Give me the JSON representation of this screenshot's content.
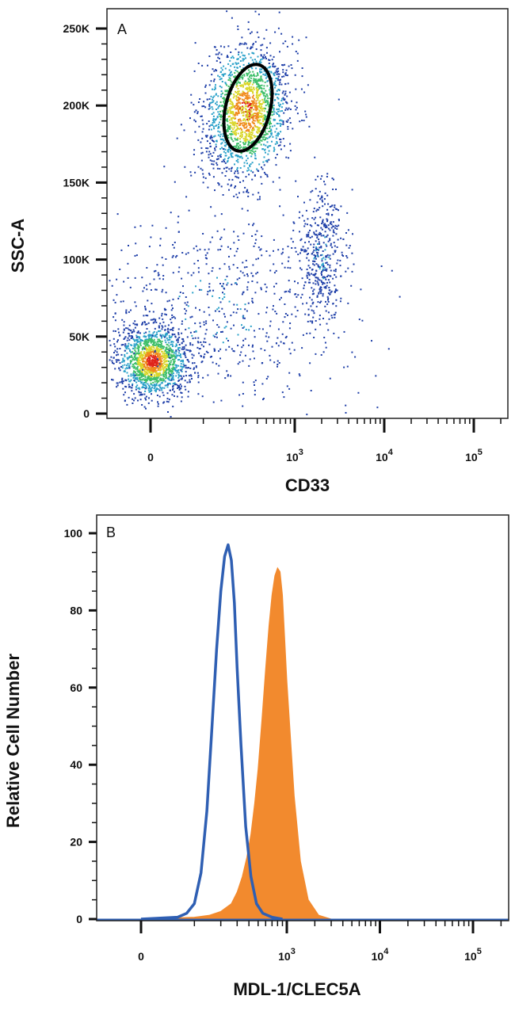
{
  "chart_data": [
    {
      "type": "scatter",
      "panel_label": "A",
      "xlabel": "CD33",
      "ylabel": "SSC-A",
      "x_scale": "biexponential",
      "x_tick_labels": [
        {
          "value": 0,
          "base": "0",
          "exp": ""
        },
        {
          "value": 1000,
          "base": "10",
          "exp": "3"
        },
        {
          "value": 10000,
          "base": "10",
          "exp": "4"
        },
        {
          "value": 100000,
          "base": "10",
          "exp": "5"
        }
      ],
      "y_tick_labels": [
        {
          "value": 0,
          "label": "0"
        },
        {
          "value": 50000,
          "label": "50K"
        },
        {
          "value": 100000,
          "label": "100K"
        },
        {
          "value": 150000,
          "label": "150K"
        },
        {
          "value": 200000,
          "label": "200K"
        },
        {
          "value": 250000,
          "label": "250K"
        }
      ],
      "ylim": [
        0,
        262144
      ],
      "colormap": [
        "#1f3fa8",
        "#2aa1c9",
        "#3fbf6a",
        "#d9d629",
        "#f08a1c",
        "#e0241b"
      ],
      "populations": [
        {
          "x_center": 0,
          "y_center": 37000,
          "density": "high"
        },
        {
          "x_center": 500,
          "y_center": 195000,
          "density": "high"
        },
        {
          "x_center": 2000,
          "y_center": 100000,
          "density": "low"
        },
        {
          "x_center": 250,
          "y_center": 70000,
          "density": "very low"
        }
      ],
      "gate": {
        "shape": "ellipse",
        "x_center": 500,
        "y_center": 201000,
        "color": "#000000"
      }
    },
    {
      "type": "area",
      "panel_label": "B",
      "xlabel": "MDL-1/CLEC5A",
      "ylabel": "Relative Cell Number",
      "x_scale": "biexponential",
      "x_tick_labels": [
        {
          "value": 0,
          "base": "0",
          "exp": ""
        },
        {
          "value": 1000,
          "base": "10",
          "exp": "3"
        },
        {
          "value": 10000,
          "base": "10",
          "exp": "4"
        },
        {
          "value": 100000,
          "base": "10",
          "exp": "5"
        }
      ],
      "y_tick_labels": [
        {
          "value": 0,
          "label": "0"
        },
        {
          "value": 20,
          "label": "20"
        },
        {
          "value": 40,
          "label": "40"
        },
        {
          "value": 60,
          "label": "60"
        },
        {
          "value": 80,
          "label": "80"
        },
        {
          "value": 100,
          "label": "100"
        }
      ],
      "ylim": [
        0,
        104
      ],
      "series": [
        {
          "style": "outline",
          "color": "#2f5fb3",
          "x": [
            0,
            60,
            80,
            100,
            120,
            140,
            160,
            180,
            200,
            220,
            240,
            260,
            280,
            300,
            330,
            370,
            420,
            480,
            560,
            700,
            900
          ],
          "y": [
            0,
            0.5,
            1.5,
            4,
            12,
            28,
            50,
            70,
            85,
            94,
            97,
            93,
            82,
            65,
            45,
            24,
            11,
            4,
            1.5,
            0.5,
            0
          ]
        },
        {
          "style": "filled",
          "color": "#f28a2e",
          "x": [
            0,
            100,
            150,
            200,
            260,
            300,
            340,
            380,
            420,
            460,
            500,
            550,
            600,
            650,
            700,
            750,
            800,
            850,
            900,
            1000,
            1200,
            1400,
            1700,
            2200,
            3000
          ],
          "y": [
            0,
            0.5,
            1,
            2,
            4,
            7,
            11,
            16,
            22,
            30,
            39,
            52,
            65,
            76,
            84,
            89,
            91,
            90,
            84,
            62,
            32,
            15,
            5,
            1,
            0
          ]
        }
      ]
    }
  ]
}
